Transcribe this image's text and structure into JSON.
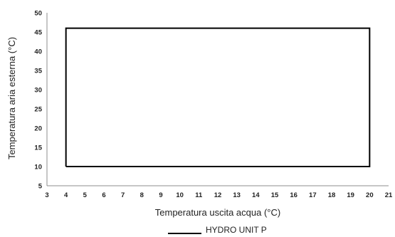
{
  "chart_data": {
    "type": "line",
    "xlabel": "Temperatura uscita acqua (°C)",
    "ylabel": "Temperatura aria esterna (°C)",
    "xlim": [
      3,
      21
    ],
    "ylim": [
      5,
      50
    ],
    "x_ticks": [
      3,
      4,
      5,
      6,
      7,
      8,
      9,
      10,
      11,
      12,
      13,
      14,
      15,
      16,
      17,
      18,
      19,
      20,
      21
    ],
    "y_ticks": [
      5,
      10,
      15,
      20,
      25,
      30,
      35,
      40,
      45,
      50
    ],
    "grid": false,
    "legend_position": "bottom-center",
    "series": [
      {
        "name": "HYDRO UNIT P",
        "color": "#000000",
        "points": [
          {
            "x": 4,
            "y": 10
          },
          {
            "x": 20,
            "y": 10
          },
          {
            "x": 20,
            "y": 46
          },
          {
            "x": 4,
            "y": 46
          },
          {
            "x": 4,
            "y": 10
          }
        ]
      }
    ]
  }
}
